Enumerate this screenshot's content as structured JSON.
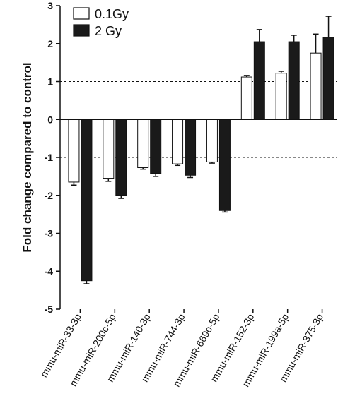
{
  "chart_data": {
    "type": "bar",
    "ylabel": "Fold change compared to control",
    "ylim": [
      -5,
      3
    ],
    "yticks": [
      3,
      2,
      1,
      0,
      -1,
      -2,
      -3,
      -4,
      -5
    ],
    "reference_lines": [
      1,
      -1
    ],
    "categories": [
      "mmu-miR-33-3p",
      "mmu-miR-200c-5p",
      "mmu-miR-140-3p",
      "mmu-miR-744-3p",
      "mmu-miR-669o-5p",
      "mmu-miR-152-3p",
      "mmu-miR-199a-5p",
      "mmu-miR-375-3p"
    ],
    "series": [
      {
        "name": "0.1Gy",
        "color": "#ffffff",
        "values": [
          -1.65,
          -1.55,
          -1.27,
          -1.17,
          -1.12,
          1.12,
          1.22,
          1.75
        ],
        "errors": [
          0.08,
          0.08,
          0.04,
          0.04,
          0.03,
          0.04,
          0.05,
          0.5
        ]
      },
      {
        "name": "2 Gy",
        "color": "#1a1a1a",
        "values": [
          -4.25,
          -2.0,
          -1.42,
          -1.47,
          -2.4,
          2.05,
          2.05,
          2.17
        ],
        "errors": [
          0.08,
          0.08,
          0.08,
          0.06,
          0.04,
          0.32,
          0.17,
          0.55
        ]
      }
    ],
    "legend": "top-left",
    "grid": false
  }
}
